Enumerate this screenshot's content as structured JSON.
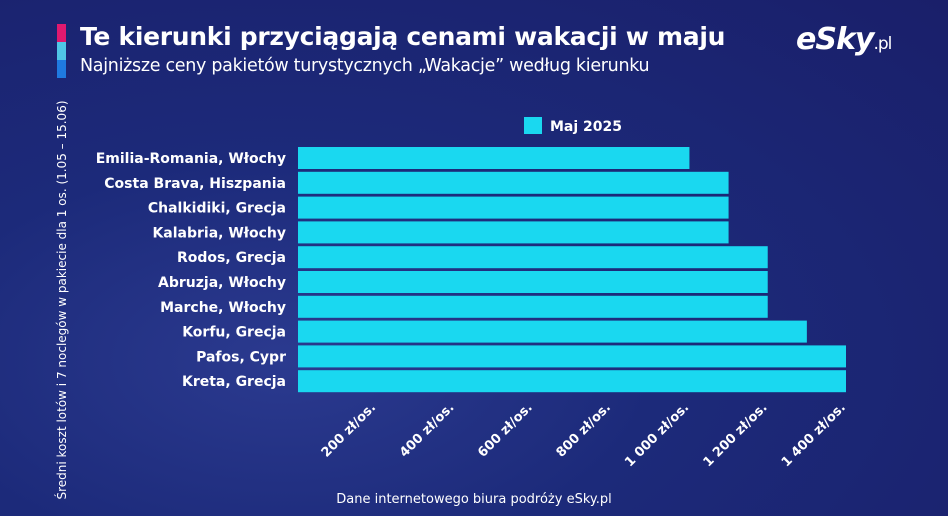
{
  "header": {
    "title": "Te kierunki przyciągają cenami wakacji w maju",
    "subtitle": "Najniższe ceny pakietów turystycznych „Wakacje” według kierunku",
    "logo_text": "eSky",
    "logo_suffix": ".pl"
  },
  "footer": {
    "source": "Dane internetowego biura podróży eSky.pl"
  },
  "colors": {
    "bar": "#1ad8f0",
    "accent": [
      "#e0196f",
      "#4fc6e6",
      "#1f7ae0"
    ]
  },
  "chart_data": {
    "type": "bar",
    "orientation": "horizontal",
    "title": "Te kierunki przyciągają cenami wakacji w maju",
    "ylabel": "Średni koszt lotów i 7 noclegów w pakiecie dla 1 os. (1.05 – 15.06)",
    "xlabel": "",
    "categories": [
      "Emilia-Romania, Włochy",
      "Costa Brava, Hiszpania",
      "Chalkidiki, Grecja",
      "Kalabria, Włochy",
      "Rodos, Grecja",
      "Abruzja, Włochy",
      "Marche, Włochy",
      "Korfu, Grecja",
      "Pafos, Cypr",
      "Kreta, Grecja"
    ],
    "series": [
      {
        "name": "Maj 2025",
        "values": [
          1000,
          1100,
          1100,
          1100,
          1200,
          1200,
          1200,
          1300,
          1400,
          1400
        ]
      }
    ],
    "xlim": [
      0,
      1400
    ],
    "ticks": [
      200,
      400,
      600,
      800,
      1000,
      1200,
      1400
    ],
    "tick_labels": [
      "200 zł/os.",
      "400 zł/os.",
      "600 zł/os.",
      "800 zł/os.",
      "1 000 zł/os.",
      "1 200 zł/os.",
      "1 400 zł/os."
    ],
    "legend_position": "top-center",
    "grid": false
  }
}
